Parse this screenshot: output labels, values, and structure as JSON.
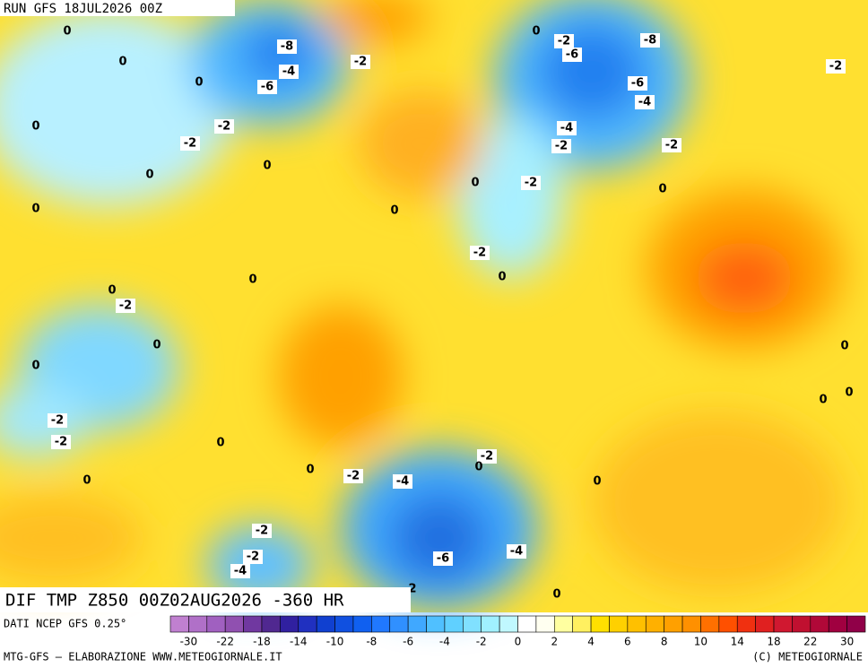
{
  "header": {
    "run": "RUN GFS 18JUL2026 00Z"
  },
  "map_title": "DIF TMP Z850 00Z02AUG2026 -360 HR",
  "contour_labels": [
    0,
    -8,
    -4,
    -6,
    0,
    0,
    -2,
    0,
    -2,
    -2,
    0,
    0,
    0,
    0,
    0,
    -2,
    -2,
    0,
    0,
    0,
    -2,
    0,
    0,
    -2,
    -2,
    0,
    0,
    0,
    -2,
    -4,
    -2,
    0,
    0,
    -2,
    -2,
    -4,
    -6,
    -4,
    2,
    0,
    0,
    -2,
    -6,
    -8,
    -6,
    -4,
    -4,
    -2,
    -2,
    0,
    -2,
    0,
    0,
    0
  ],
  "colorbar": {
    "colors": [
      "#c080d0",
      "#b070c8",
      "#a060c0",
      "#9050b0",
      "#7038a0",
      "#502890",
      "#3020a0",
      "#2030c0",
      "#1040d0",
      "#1050e0",
      "#1060f0",
      "#2078ff",
      "#3090ff",
      "#40a8ff",
      "#50c0ff",
      "#60d0ff",
      "#80e0ff",
      "#a0f0ff",
      "#c0f8ff",
      "#ffffff",
      "#fffff0",
      "#ffffa0",
      "#fff060",
      "#ffe000",
      "#ffd000",
      "#ffc000",
      "#ffb000",
      "#ffa000",
      "#ff9000",
      "#ff7000",
      "#ff5000",
      "#f03010",
      "#e02020",
      "#d01830",
      "#c01030",
      "#b00838",
      "#a00040",
      "#900048"
    ],
    "labels": [
      -30,
      -22,
      -18,
      -14,
      -10,
      -8,
      -6,
      -4,
      -2,
      0,
      2,
      4,
      6,
      8,
      10,
      14,
      18,
      22,
      30
    ]
  },
  "footer": {
    "source": "DATI NCEP GFS 0.25°",
    "credit": "MTG-GFS — ELABORAZIONE WWW.METEOGIORNALE.IT",
    "copyright": "(C) METEOGIORNALE"
  }
}
